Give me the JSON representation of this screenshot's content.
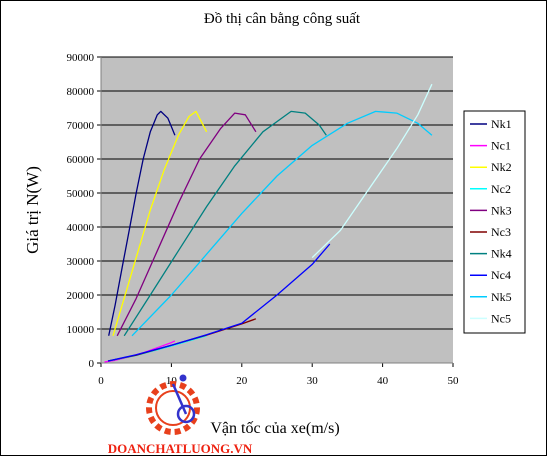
{
  "chart_data": {
    "type": "line",
    "title": "Đồ thị cân bằng công suất",
    "xlabel": "Vận tốc của xe(m/s)",
    "ylabel": "Giá trị N(W)",
    "xlim": [
      0,
      50
    ],
    "ylim": [
      0,
      90000
    ],
    "xticks": [
      0,
      10,
      20,
      30,
      40,
      50
    ],
    "yticks": [
      0,
      10000,
      20000,
      30000,
      40000,
      50000,
      60000,
      70000,
      80000,
      90000
    ],
    "xtick_labels": [
      "0",
      "10",
      "20",
      "30",
      "40",
      "50"
    ],
    "ytick_labels": [
      "0",
      "10000",
      "20000",
      "30000",
      "40000",
      "50000",
      "60000",
      "70000",
      "80000",
      "90000"
    ],
    "grid": "horizontal",
    "legend_position": "right",
    "series": [
      {
        "name": "Nk1",
        "color": "#000080",
        "x": [
          1.1,
          2.0,
          3.0,
          4.0,
          5.0,
          6.0,
          7.0,
          8.0,
          8.5,
          9.5,
          10.5
        ],
        "y": [
          8000,
          17000,
          28000,
          39000,
          50000,
          60000,
          68000,
          73000,
          74000,
          72000,
          67000
        ]
      },
      {
        "name": "Nc1",
        "color": "#ff00ff",
        "x": [
          0.5,
          2.0,
          4.0,
          6.0,
          8.0,
          10.0,
          10.5
        ],
        "y": [
          300,
          800,
          1800,
          3000,
          4500,
          6000,
          6500
        ]
      },
      {
        "name": "Nk2",
        "color": "#ffff00",
        "x": [
          1.7,
          3.0,
          5.0,
          7.0,
          9.0,
          11.0,
          12.5,
          13.5,
          15.0
        ],
        "y": [
          8000,
          17000,
          31000,
          45000,
          57000,
          67000,
          72500,
          74000,
          68000
        ]
      },
      {
        "name": "Nc2",
        "color": "#00ffff",
        "x": [
          1.0,
          5.0,
          10.0,
          15.0
        ],
        "y": [
          600,
          2200,
          5000,
          8000
        ]
      },
      {
        "name": "Nk3",
        "color": "#800080",
        "x": [
          2.3,
          5.0,
          8.0,
          11.0,
          14.0,
          17.0,
          19.0,
          20.5,
          22.0
        ],
        "y": [
          8000,
          19000,
          33000,
          47000,
          60000,
          69000,
          73500,
          73000,
          68000
        ]
      },
      {
        "name": "Nc3",
        "color": "#800000",
        "x": [
          1.0,
          5.0,
          10.0,
          15.0,
          20.0,
          22.0
        ],
        "y": [
          600,
          2300,
          5200,
          8200,
          11500,
          13000
        ]
      },
      {
        "name": "Nk4",
        "color": "#008080",
        "x": [
          3.3,
          7.0,
          11.0,
          15.0,
          19.0,
          23.0,
          27.0,
          29.0,
          31.0,
          32.0
        ],
        "y": [
          8000,
          20000,
          33000,
          46000,
          58000,
          68000,
          74000,
          73500,
          70000,
          67000
        ]
      },
      {
        "name": "Nc4",
        "color": "#0000ff",
        "x": [
          1.0,
          5.0,
          10.0,
          15.0,
          20.0,
          25.0,
          30.0,
          32.5
        ],
        "y": [
          600,
          2400,
          5200,
          8300,
          11700,
          20000,
          29000,
          35000
        ]
      },
      {
        "name": "Nk5",
        "color": "#00ccff",
        "x": [
          4.4,
          10.0,
          15.0,
          20.0,
          25.0,
          30.0,
          35.0,
          39.0,
          42.0,
          45.0,
          47.0
        ],
        "y": [
          8000,
          20000,
          32000,
          44000,
          55000,
          64000,
          70500,
          74000,
          73500,
          70500,
          67000
        ]
      },
      {
        "name": "Nc5",
        "color": "#ccffff",
        "x": [
          30.0,
          34.0,
          38.0,
          42.0,
          45.0,
          47.0
        ],
        "y": [
          31000,
          39000,
          51000,
          63000,
          73000,
          82000
        ]
      }
    ]
  },
  "watermark_text": "DOANCHATLUONG.VN"
}
